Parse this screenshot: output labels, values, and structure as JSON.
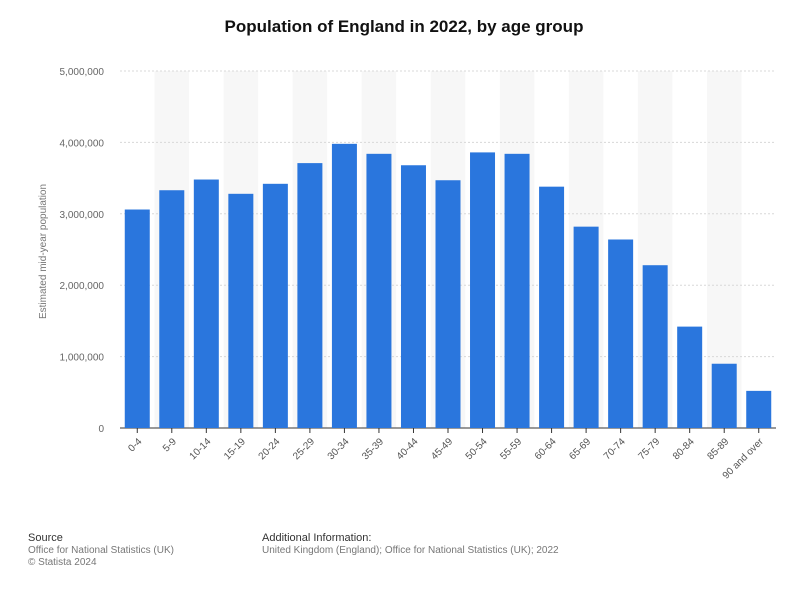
{
  "chart_data": {
    "type": "bar",
    "title": "Population of England in 2022, by age group",
    "ylabel": "Estimated mid-year population",
    "xlabel": "",
    "ylim": [
      0,
      5000000
    ],
    "yticks": [
      0,
      1000000,
      2000000,
      3000000,
      4000000,
      5000000
    ],
    "ytick_labels": [
      "0",
      "1,000,000",
      "2,000,000",
      "3,000,000",
      "4,000,000",
      "5,000,000"
    ],
    "categories": [
      "0-4",
      "5-9",
      "10-14",
      "15-19",
      "20-24",
      "25-29",
      "30-34",
      "35-39",
      "40-44",
      "45-49",
      "50-54",
      "55-59",
      "60-64",
      "65-69",
      "70-74",
      "75-79",
      "80-84",
      "85-89",
      "90 and over"
    ],
    "values": [
      3060000,
      3330000,
      3480000,
      3280000,
      3420000,
      3710000,
      3980000,
      3840000,
      3680000,
      3470000,
      3860000,
      3840000,
      3380000,
      2820000,
      2640000,
      2280000,
      1420000,
      900000,
      520000
    ],
    "bar_color": "#2a76dd",
    "alt_band_color": "#f7f7f7",
    "grid": true
  },
  "footer": {
    "source_heading": "Source",
    "source_line1": "Office for National Statistics (UK)",
    "source_line2": "© Statista 2024",
    "info_heading": "Additional Information:",
    "info_text": "United Kingdom (England); Office for National Statistics (UK); 2022"
  }
}
